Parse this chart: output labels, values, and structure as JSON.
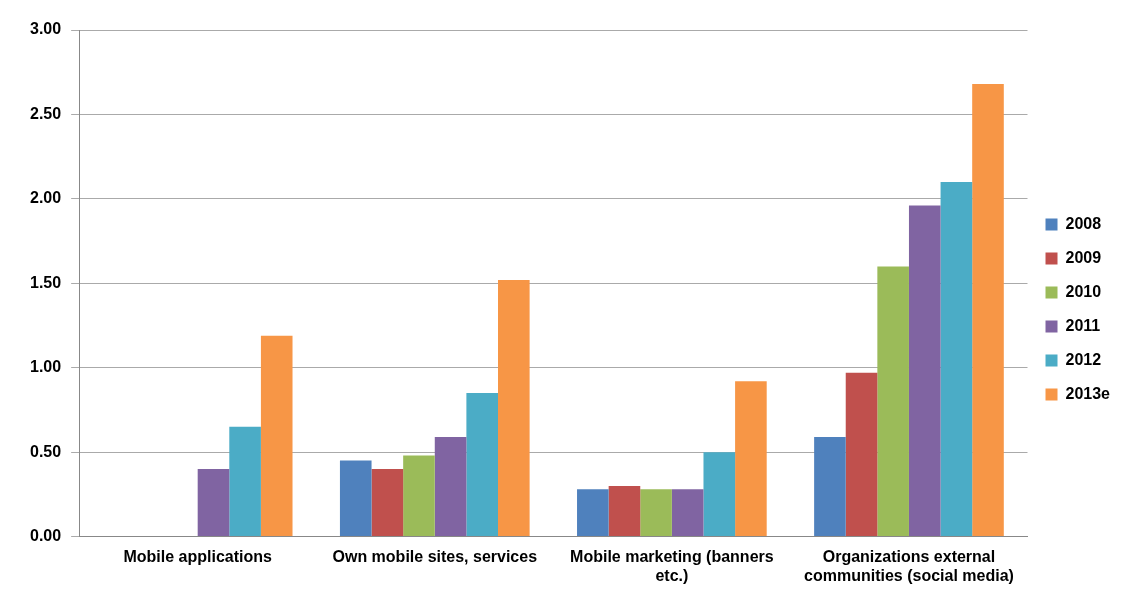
{
  "chart_data": {
    "type": "bar",
    "categories": [
      "Mobile applications",
      "Own mobile sites, services",
      "Mobile marketing (banners etc.)",
      "Organizations external communities (social media)"
    ],
    "series": [
      {
        "name": "2008",
        "color": "#4f81bd",
        "values": [
          null,
          0.45,
          0.28,
          0.59
        ]
      },
      {
        "name": "2009",
        "color": "#c0504d",
        "values": [
          null,
          0.4,
          0.3,
          0.97
        ]
      },
      {
        "name": "2010",
        "color": "#9bbb59",
        "values": [
          null,
          0.48,
          0.28,
          1.6
        ]
      },
      {
        "name": "2011",
        "color": "#8064a2",
        "values": [
          0.4,
          0.59,
          0.28,
          1.96
        ]
      },
      {
        "name": "2012",
        "color": "#4bacc6",
        "values": [
          0.65,
          0.85,
          0.5,
          2.1
        ]
      },
      {
        "name": "2013e",
        "color": "#f79646",
        "values": [
          1.19,
          1.52,
          0.92,
          2.68
        ]
      }
    ],
    "ylim": [
      0,
      3
    ],
    "yticks": [
      {
        "value": 0,
        "label": "0.00"
      },
      {
        "value": 0.5,
        "label": "0.50"
      },
      {
        "value": 1,
        "label": "1.00"
      },
      {
        "value": 1.5,
        "label": "1.50"
      },
      {
        "value": 2,
        "label": "2.00"
      },
      {
        "value": 2.5,
        "label": "2.50"
      },
      {
        "value": 3,
        "label": "3.00"
      }
    ],
    "grid": "y",
    "legend": "right"
  }
}
